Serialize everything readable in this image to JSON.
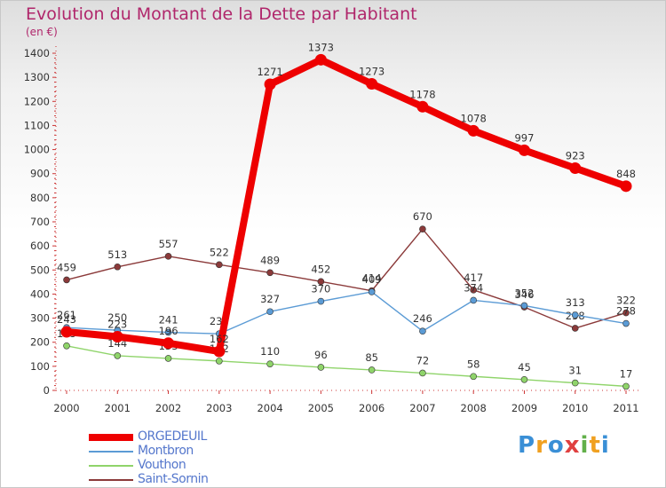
{
  "title": "Evolution du Montant de la Dette par Habitant",
  "unit_label": "(en €)",
  "logo": {
    "letters": [
      "P",
      "r",
      "o",
      "x",
      "i",
      "t",
      "i"
    ],
    "colors": [
      "#3a8fd6",
      "#f0a020",
      "#3a8fd6",
      "#e04040",
      "#62b04a",
      "#f0a020",
      "#3a8fd6"
    ]
  },
  "colors": {
    "ORGEDEUIL": "#ee0000",
    "Montbron": "#5b9bd5",
    "Vouthon": "#8fd46a",
    "Saint-Sornin": "#8b3a3a"
  },
  "chart_data": {
    "type": "line",
    "title": "Evolution du Montant de la Dette par Habitant",
    "ylabel": "(en €)",
    "x": [
      "2000",
      "2001",
      "2002",
      "2003",
      "2004",
      "2005",
      "2006",
      "2007",
      "2008",
      "2009",
      "2010",
      "2011"
    ],
    "ylim": [
      0,
      1400
    ],
    "yticks": [
      0,
      100,
      200,
      300,
      400,
      500,
      600,
      700,
      800,
      900,
      1000,
      1100,
      1200,
      1300,
      1400
    ],
    "grid": false,
    "legend": "bottom-left",
    "series": [
      {
        "name": "ORGEDEUIL",
        "color": "#ee0000",
        "values": [
          243,
          223,
          196,
          162,
          1271,
          1373,
          1273,
          1178,
          1078,
          997,
          923,
          848
        ]
      },
      {
        "name": "Montbron",
        "color": "#5b9bd5",
        "values": [
          261,
          250,
          241,
          235,
          327,
          370,
          409,
          246,
          374,
          352,
          313,
          278
        ]
      },
      {
        "name": "Vouthon",
        "color": "#8fd46a",
        "values": [
          185,
          144,
          133,
          122,
          110,
          96,
          85,
          72,
          58,
          45,
          31,
          17
        ]
      },
      {
        "name": "Saint-Sornin",
        "color": "#8b3a3a",
        "values": [
          459,
          513,
          557,
          522,
          489,
          452,
          414,
          670,
          417,
          346,
          258,
          322
        ]
      }
    ]
  }
}
